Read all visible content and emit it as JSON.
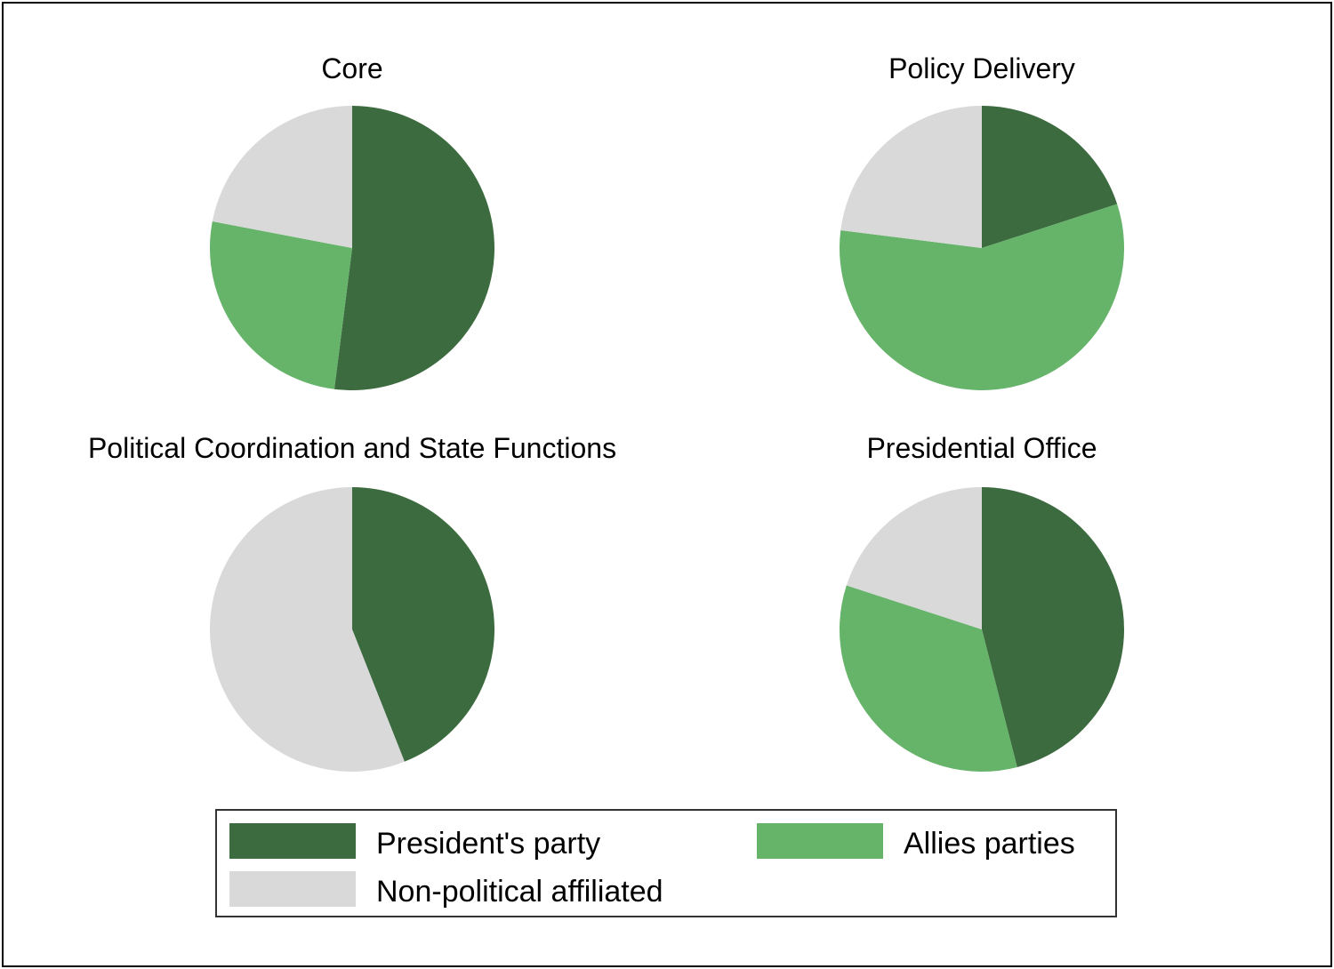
{
  "chart_data": [
    {
      "type": "pie",
      "title": "Core",
      "categories": [
        "President's party",
        "Allies parties",
        "Non-political affiliated"
      ],
      "values": [
        52,
        26,
        22
      ]
    },
    {
      "type": "pie",
      "title": "Policy Delivery",
      "categories": [
        "President's party",
        "Allies parties",
        "Non-political affiliated"
      ],
      "values": [
        20,
        57,
        23
      ]
    },
    {
      "type": "pie",
      "title": "Political Coordination and State Functions",
      "categories": [
        "President's party",
        "Allies parties",
        "Non-political affiliated"
      ],
      "values": [
        44,
        0,
        56
      ]
    },
    {
      "type": "pie",
      "title": "Presidential Office",
      "categories": [
        "President's party",
        "Allies parties",
        "Non-political affiliated"
      ],
      "values": [
        46,
        34,
        20
      ]
    }
  ],
  "legend": {
    "placement": "bottom",
    "items": [
      {
        "label": "President's party",
        "color": "#3d6b40"
      },
      {
        "label": "Allies parties",
        "color": "#66b36a"
      },
      {
        "label": "Non-political affiliated",
        "color": "#d9d9d9"
      }
    ]
  }
}
